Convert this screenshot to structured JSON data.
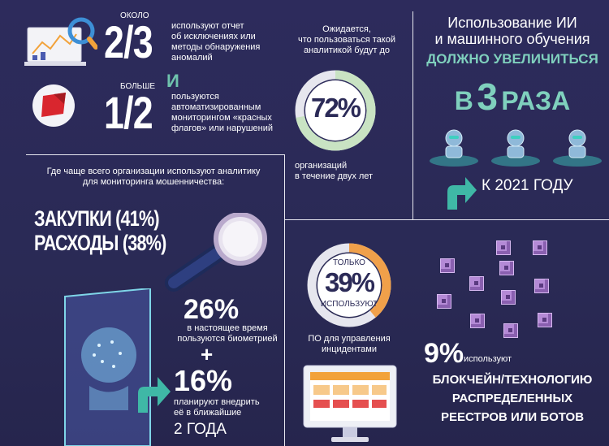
{
  "top_left": {
    "around_label": "ОКОЛО",
    "fraction1": "2/3",
    "text1": [
      "используют отчет",
      "об исключениях или",
      "методы обнаружения",
      "аномалий"
    ],
    "and_word": "И",
    "more_label": "БОЛЬШЕ",
    "fraction2": "1/2",
    "text2": [
      "пользуются",
      "автоматизированным",
      "мониторингом «красных",
      "флагов» или нарушений"
    ]
  },
  "expected": {
    "intro": [
      "Ожидается,",
      "что пользоваться такой",
      "аналитикой будут до"
    ],
    "percent": "72%",
    "percent_value": 72,
    "outro": [
      "организаций",
      "в течение двух лет"
    ]
  },
  "ai": {
    "line1": "Использование ИИ",
    "line2": "и машинного обучения",
    "line3": "ДОЛЖНО УВЕЛИЧИТЬСЯ",
    "times_prefix": "В",
    "times_number": "3",
    "times_suffix": "РАЗА",
    "by_year": "К 2021 ГОДУ"
  },
  "where": {
    "question": [
      "Где чаще всего организации используют аналитику",
      "для мониторинга мошенничества:"
    ],
    "item1": "ЗАКУПКИ (41%)",
    "item2": "РАСХОДЫ (38%)"
  },
  "biometrics": {
    "pct1": "26%",
    "text1": [
      "в настоящее время",
      "пользуются биометрией"
    ],
    "plus": "+",
    "pct2": "16%",
    "text2": [
      "планируют внедрить",
      "её в ближайшие"
    ],
    "years": "2 ГОДА"
  },
  "incidents": {
    "only": "ТОЛЬКО",
    "percent": "39%",
    "percent_value": 39,
    "use": "ИСПОЛЬЗУЮТ",
    "caption": [
      "ПО для управления",
      "инцидентами"
    ]
  },
  "blockchain": {
    "percent": "9%",
    "use": "используют",
    "lines": [
      "БЛОКЧЕЙН/ТЕХНОЛОГИЮ",
      "РАСПРЕДЕЛЕННЫХ",
      "РЕЕСТРОВ ИЛИ БОТОВ"
    ]
  },
  "colors": {
    "background": "#2b2a57",
    "teal": "#3fb8a6",
    "ring_green": "#c9e3c3",
    "ring_orange": "#f0a04a",
    "purple": "#b48ad6"
  }
}
